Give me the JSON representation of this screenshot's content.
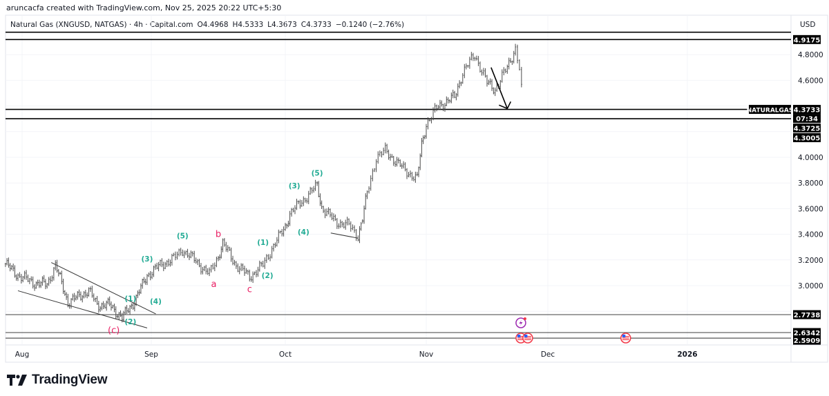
{
  "header": {
    "credit": "aruncacfa created with TradingView.com, Nov 25, 2025 20:22 UTC+5:30",
    "symbol": "Natural Gas (XNGUSD, NATGAS) · 4h · Capital.com",
    "open": "O4.4968",
    "high": "H4.5333",
    "low": "L4.3673",
    "close": "C4.3733",
    "change": "−0.1240 (−2.76%)",
    "currency": "USD"
  },
  "brand": {
    "name": "TradingView"
  },
  "colors": {
    "bars": "#4a4a4a",
    "wave_teal": "#22ab94",
    "wave_pink": "#e91e63",
    "badge": "#000000",
    "event_purple": "#9c27b0",
    "event_red": "#f23645"
  },
  "chart_data": {
    "type": "ohlc-bar",
    "timeframe": "4h",
    "grid": true,
    "y_scale": "linear",
    "ylim": [
      2.55,
      5.0
    ],
    "x_ticks": [
      {
        "date": "2025-08-01",
        "label": "Aug"
      },
      {
        "date": "2025-09-01",
        "label": "Sep"
      },
      {
        "date": "2025-10-01",
        "label": "Oct"
      },
      {
        "date": "2025-11-01",
        "label": "Nov"
      },
      {
        "date": "2025-12-01",
        "label": "Dec"
      },
      {
        "date": "2026-01-01",
        "label": "2026"
      }
    ],
    "y_ticks": [
      "4.8000",
      "4.6000",
      "4.0000",
      "3.8000",
      "3.6000",
      "3.4000",
      "3.2000",
      "3.0000"
    ],
    "close_path": [
      [
        "2025-07-28",
        3.17
      ],
      [
        "2025-07-31",
        3.08
      ],
      [
        "2025-08-04",
        3.02
      ],
      [
        "2025-08-07",
        3.01
      ],
      [
        "2025-08-09",
        3.16
      ],
      [
        "2025-08-12",
        2.87
      ],
      [
        "2025-08-17",
        2.96
      ],
      [
        "2025-08-19",
        2.85
      ],
      [
        "2025-08-22",
        2.85
      ],
      [
        "2025-08-25",
        2.75
      ],
      [
        "2025-08-28",
        2.88
      ],
      [
        "2025-08-31",
        3.08
      ],
      [
        "2025-09-03",
        3.16
      ],
      [
        "2025-09-06",
        3.21
      ],
      [
        "2025-09-08",
        3.28
      ],
      [
        "2025-09-11",
        3.19
      ],
      [
        "2025-09-14",
        3.09
      ],
      [
        "2025-09-16",
        3.23
      ],
      [
        "2025-09-17",
        3.33
      ],
      [
        "2025-09-20",
        3.16
      ],
      [
        "2025-09-23",
        3.07
      ],
      [
        "2025-09-26",
        3.16
      ],
      [
        "2025-09-28",
        3.29
      ],
      [
        "2025-10-01",
        3.46
      ],
      [
        "2025-10-02",
        3.56
      ],
      [
        "2025-10-05",
        3.67
      ],
      [
        "2025-10-08",
        3.78
      ],
      [
        "2025-10-09",
        3.61
      ],
      [
        "2025-10-12",
        3.5
      ],
      [
        "2025-10-15",
        3.47
      ],
      [
        "2025-10-17",
        3.39
      ],
      [
        "2025-10-18",
        3.52
      ],
      [
        "2025-10-19",
        3.72
      ],
      [
        "2025-10-21",
        4.0
      ],
      [
        "2025-10-23",
        4.05
      ],
      [
        "2025-10-27",
        3.91
      ],
      [
        "2025-10-30",
        3.83
      ],
      [
        "2025-10-31",
        4.1
      ],
      [
        "2025-11-01",
        4.26
      ],
      [
        "2025-11-04",
        4.4
      ],
      [
        "2025-11-08",
        4.47
      ],
      [
        "2025-11-10",
        4.66
      ],
      [
        "2025-11-13",
        4.8
      ],
      [
        "2025-11-16",
        4.58
      ],
      [
        "2025-11-18",
        4.53
      ],
      [
        "2025-11-21",
        4.7
      ],
      [
        "2025-11-23",
        4.85
      ],
      [
        "2025-11-24",
        4.69
      ],
      [
        "2025-11-25",
        4.37
      ]
    ],
    "horizontal_levels": [
      {
        "price": 4.975,
        "label": ""
      },
      {
        "price": 4.9175,
        "label": "4.9175"
      },
      {
        "price": 4.3733,
        "label": "4.3733"
      },
      {
        "price": 4.3005,
        "label": "4.3005"
      },
      {
        "price": 2.7738,
        "label": "2.7738"
      },
      {
        "price": 2.6342,
        "label": "2.6342"
      },
      {
        "price": 2.5909,
        "label": "2.5909"
      }
    ],
    "last_price": {
      "symbol_label": "NATURALGAS",
      "price": "4.3733",
      "countdown": "07:34",
      "extra": "4.3725"
    },
    "trend_lines": [
      {
        "from": [
          "2025-08-08",
          3.18
        ],
        "to": [
          "2025-09-02",
          2.78
        ]
      },
      {
        "from": [
          "2025-07-31",
          2.96
        ],
        "to": [
          "2025-08-31",
          2.67
        ]
      },
      {
        "from": [
          "2025-10-11",
          3.41
        ],
        "to": [
          "2025-10-17",
          3.37
        ]
      }
    ],
    "arrow": {
      "from": [
        "2025-11-17",
        4.7
      ],
      "to": [
        "2025-11-21",
        4.38
      ]
    },
    "wave_labels": [
      {
        "text": "(1)",
        "date": "2025-08-27",
        "price": 2.9,
        "color": "teal"
      },
      {
        "text": "(2)",
        "date": "2025-08-27",
        "price": 2.72,
        "color": "teal"
      },
      {
        "text": "(3)",
        "date": "2025-08-31",
        "price": 3.21,
        "color": "teal"
      },
      {
        "text": "(4)",
        "date": "2025-09-02",
        "price": 2.88,
        "color": "teal"
      },
      {
        "text": "(5)",
        "date": "2025-09-08",
        "price": 3.39,
        "color": "teal"
      },
      {
        "text": "(c)",
        "date": "2025-08-23",
        "price": 2.65,
        "color": "pink"
      },
      {
        "text": "a",
        "date": "2025-09-15",
        "price": 3.01,
        "color": "pink"
      },
      {
        "text": "b",
        "date": "2025-09-16",
        "price": 3.4,
        "color": "pink"
      },
      {
        "text": "c",
        "date": "2025-09-23",
        "price": 2.97,
        "color": "pink"
      },
      {
        "text": "(1)",
        "date": "2025-09-26",
        "price": 3.34,
        "color": "teal"
      },
      {
        "text": "(2)",
        "date": "2025-09-27",
        "price": 3.08,
        "color": "teal"
      },
      {
        "text": "(3)",
        "date": "2025-10-03",
        "price": 3.78,
        "color": "teal"
      },
      {
        "text": "(4)",
        "date": "2025-10-05",
        "price": 3.42,
        "color": "teal"
      },
      {
        "text": "(5)",
        "date": "2025-10-08",
        "price": 3.88,
        "color": "teal"
      }
    ],
    "events": [
      {
        "type": "lightning-icon",
        "date": "2025-11-24"
      },
      {
        "type": "us-flag-icon",
        "date": "2025-11-24"
      },
      {
        "type": "us-flag-icon",
        "date": "2025-11-25"
      },
      {
        "type": "us-flag-icon",
        "date": "2025-12-18"
      }
    ]
  }
}
